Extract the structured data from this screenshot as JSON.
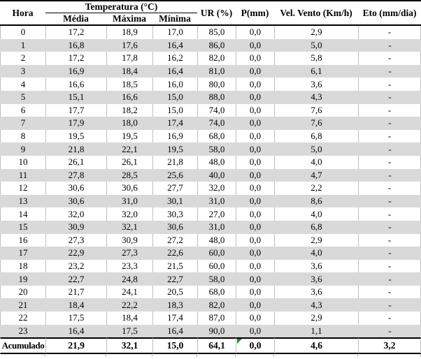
{
  "table": {
    "header": {
      "hora": "Hora",
      "temperatura_group": "Temperatura (°C)",
      "sub": [
        "Média",
        "Máxima",
        "Mínima"
      ],
      "ur": "UR (%)",
      "p": "P(mm)",
      "vel_vento": "Vel. Vento (Km/h)",
      "eto": "Eto (mm/dia)"
    },
    "rows": [
      [
        "0",
        "17,2",
        "18,9",
        "17,0",
        "85,0",
        "0,0",
        "2,9",
        "-"
      ],
      [
        "1",
        "16,8",
        "17,6",
        "16,4",
        "86,0",
        "0,0",
        "5,0",
        "-"
      ],
      [
        "2",
        "17,2",
        "17,8",
        "16,2",
        "82,0",
        "0,0",
        "5,8",
        "-"
      ],
      [
        "3",
        "16,9",
        "18,4",
        "16,4",
        "81,0",
        "0,0",
        "6,1",
        "-"
      ],
      [
        "4",
        "16,6",
        "18,5",
        "16,0",
        "80,0",
        "0,0",
        "3,6",
        "-"
      ],
      [
        "5",
        "15,1",
        "16,6",
        "15,0",
        "88,0",
        "0,0",
        "4,3",
        "-"
      ],
      [
        "6",
        "17,7",
        "18,2",
        "15,0",
        "74,0",
        "0,0",
        "7,6",
        "-"
      ],
      [
        "7",
        "17,9",
        "18,0",
        "17,4",
        "74,0",
        "0,0",
        "7,6",
        "-"
      ],
      [
        "8",
        "19,5",
        "19,5",
        "16,9",
        "68,0",
        "0,0",
        "6,8",
        "-"
      ],
      [
        "9",
        "21,8",
        "22,1",
        "19,5",
        "58,0",
        "0,0",
        "5,0",
        "-"
      ],
      [
        "10",
        "26,1",
        "26,1",
        "21,8",
        "48,0",
        "0,0",
        "4,0",
        "-"
      ],
      [
        "11",
        "27,8",
        "28,5",
        "25,6",
        "40,0",
        "0,0",
        "4,7",
        "-"
      ],
      [
        "12",
        "30,6",
        "30,6",
        "27,7",
        "32,0",
        "0,0",
        "2,2",
        "-"
      ],
      [
        "13",
        "30,6",
        "31,0",
        "30,1",
        "31,0",
        "0,0",
        "8,6",
        "-"
      ],
      [
        "14",
        "32,0",
        "32,0",
        "30,3",
        "27,0",
        "0,0",
        "4,0",
        "-"
      ],
      [
        "15",
        "30,9",
        "32,1",
        "30,6",
        "31,0",
        "0,0",
        "6,8",
        "-"
      ],
      [
        "16",
        "27,3",
        "30,9",
        "27,2",
        "48,0",
        "0,0",
        "2,9",
        "-"
      ],
      [
        "17",
        "22,9",
        "27,3",
        "22,6",
        "60,0",
        "0,0",
        "4,0",
        "-"
      ],
      [
        "18",
        "23,2",
        "23,3",
        "21,5",
        "60,0",
        "0,0",
        "3,6",
        "-"
      ],
      [
        "19",
        "22,7",
        "24,8",
        "22,7",
        "58,0",
        "0,0",
        "3,6",
        "-"
      ],
      [
        "20",
        "21,7",
        "24,1",
        "20,5",
        "68,0",
        "0,0",
        "3,6",
        "-"
      ],
      [
        "21",
        "18,4",
        "22,2",
        "18,3",
        "82,0",
        "0,0",
        "4,3",
        "-"
      ],
      [
        "22",
        "17,5",
        "18,4",
        "17,4",
        "87,0",
        "0,0",
        "2,9",
        "-"
      ],
      [
        "23",
        "16,4",
        "17,5",
        "16,4",
        "90,0",
        "0,0",
        "1,1",
        "-"
      ]
    ],
    "footer": [
      "Acumulado",
      "21,9",
      "32,1",
      "15,0",
      "64,1",
      "0,0",
      "4,6",
      "3,2"
    ]
  },
  "colors": {
    "stripe": "#d9d9d9",
    "gridline": "#bfbfbf",
    "rule": "#000000",
    "error_indicator": "#0f9b0f"
  }
}
